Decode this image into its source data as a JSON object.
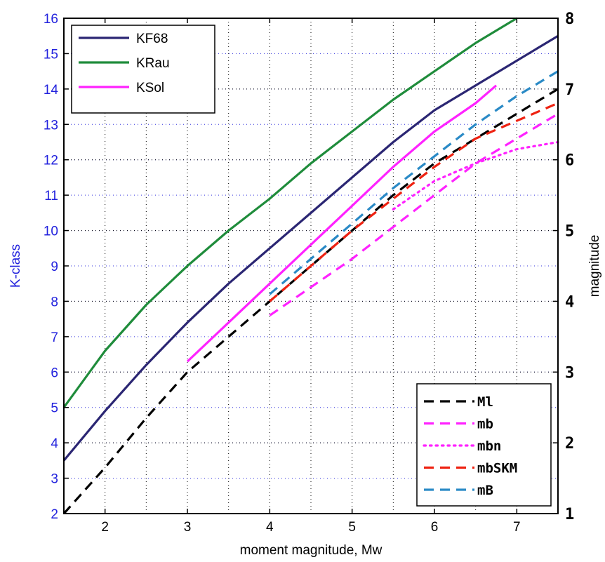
{
  "chart_data": {
    "type": "line",
    "xlabel": "moment magnitude, Mw",
    "ylabel_left": "K-class",
    "ylabel_right": "magnitude",
    "xlim": [
      1.5,
      7.5
    ],
    "ylim_left": [
      2,
      16
    ],
    "ylim_right": [
      1,
      8
    ],
    "x_ticks": [
      "2",
      "3",
      "4",
      "5",
      "6",
      "7"
    ],
    "y_ticks_left": [
      "2",
      "3",
      "4",
      "5",
      "6",
      "7",
      "8",
      "9",
      "10",
      "11",
      "12",
      "13",
      "14",
      "15",
      "16"
    ],
    "y_ticks_right": [
      "1",
      "2",
      "3",
      "4",
      "5",
      "6",
      "7",
      "8"
    ],
    "grid": true,
    "colors": {
      "KF68": "#2b2673",
      "KRau": "#1f8c3b",
      "KSol": "#ff22ff",
      "Ml": "#000000",
      "mb": "#ff22ff",
      "mbn": "#ff22ff",
      "mbSKM": "#ee2211",
      "mB": "#2a8ac6",
      "left_axis": "#2222dd"
    },
    "series_left_axis": [
      {
        "name": "KF68",
        "style": "solid",
        "x": [
          1.5,
          2,
          2.5,
          3,
          3.5,
          4,
          4.5,
          5,
          5.5,
          6,
          6.5,
          7,
          7.5
        ],
        "y": [
          3.5,
          4.9,
          6.2,
          7.4,
          8.5,
          9.5,
          10.5,
          11.5,
          12.5,
          13.4,
          14.1,
          14.8,
          15.5
        ]
      },
      {
        "name": "KRau",
        "style": "solid",
        "x": [
          1.5,
          2,
          2.5,
          3,
          3.5,
          4,
          4.5,
          5,
          5.5,
          6,
          6.5,
          7
        ],
        "y": [
          5,
          6.6,
          7.9,
          9,
          10,
          10.9,
          11.9,
          12.8,
          13.7,
          14.5,
          15.3,
          16
        ]
      },
      {
        "name": "KSol",
        "style": "solid",
        "x": [
          3,
          3.5,
          4,
          4.5,
          5,
          5.5,
          6,
          6.5,
          6.75
        ],
        "y": [
          6.3,
          7.4,
          8.5,
          9.6,
          10.7,
          11.8,
          12.8,
          13.6,
          14.1
        ]
      }
    ],
    "series_right_axis": [
      {
        "name": "Ml",
        "style": "dashed",
        "x": [
          1.5,
          2,
          2.5,
          3,
          3.5,
          4,
          4.5,
          5,
          5.5,
          6,
          6.5,
          7,
          7.5
        ],
        "y": [
          1,
          1.65,
          2.35,
          3,
          3.5,
          4,
          4.5,
          5,
          5.5,
          5.95,
          6.3,
          6.65,
          7
        ]
      },
      {
        "name": "mb",
        "style": "dashed",
        "x": [
          4,
          4.5,
          5,
          5.5,
          6,
          6.5,
          7,
          7.5
        ],
        "y": [
          3.8,
          4.2,
          4.6,
          5.05,
          5.5,
          5.95,
          6.3,
          6.65
        ]
      },
      {
        "name": "mbn",
        "style": "dotted",
        "x": [
          5.5,
          6,
          6.5,
          7,
          7.5
        ],
        "y": [
          5.3,
          5.7,
          5.95,
          6.15,
          6.25
        ]
      },
      {
        "name": "mbSKM",
        "style": "dashed",
        "x": [
          4,
          4.5,
          5,
          5.5,
          6,
          6.5,
          7,
          7.5
        ],
        "y": [
          4,
          4.5,
          5,
          5.45,
          5.9,
          6.3,
          6.55,
          6.8
        ]
      },
      {
        "name": "mB",
        "style": "dashed",
        "x": [
          4,
          4.5,
          5,
          5.5,
          6,
          6.5,
          7,
          7.5
        ],
        "y": [
          4.1,
          4.6,
          5.1,
          5.6,
          6.05,
          6.5,
          6.9,
          7.25
        ]
      }
    ],
    "legend_top_left": [
      "KF68",
      "KRau",
      "KSol"
    ],
    "legend_bottom_right": [
      "Ml",
      "mb",
      "mbn",
      "mbSKM",
      "mB"
    ]
  }
}
